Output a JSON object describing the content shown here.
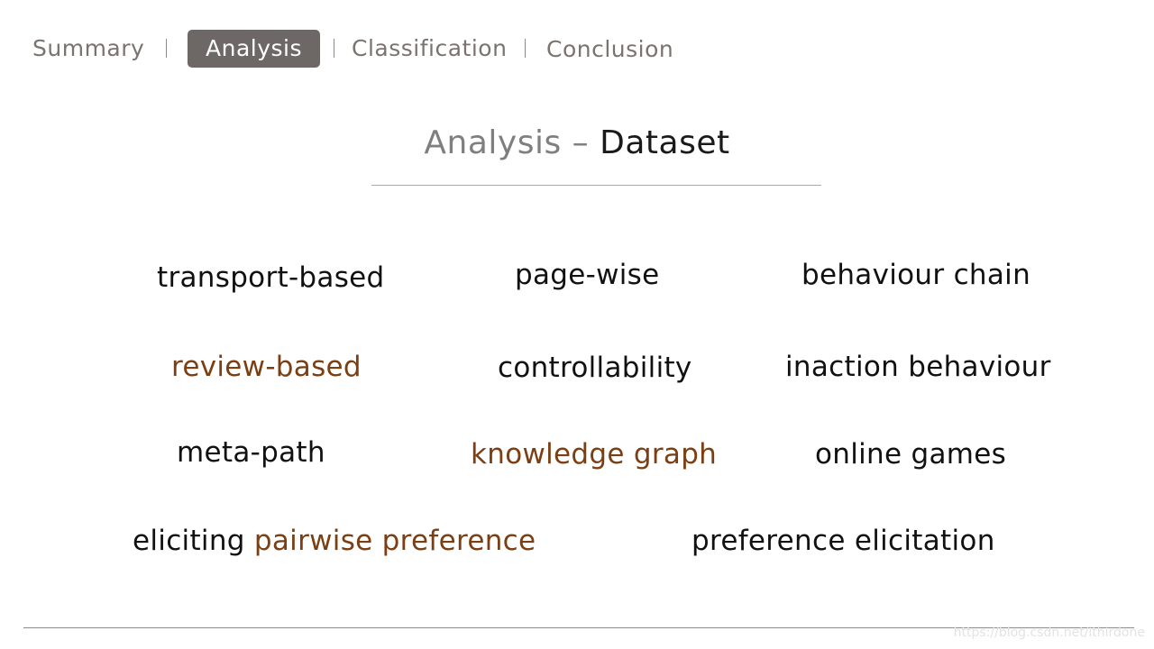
{
  "nav": {
    "items": [
      {
        "label": "Summary"
      },
      {
        "label": "Analysis"
      },
      {
        "label": "Classification"
      },
      {
        "label": "Conclusion"
      }
    ],
    "active_index": 1
  },
  "slide": {
    "title_main": "Analysis",
    "title_dash": "–",
    "title_sub": "Dataset"
  },
  "terms": {
    "transport_based": "transport-based",
    "page_wise": "page-wise",
    "behaviour_chain": "behaviour chain",
    "review_based": "review-based",
    "controllability": "controllability",
    "inaction_behaviour": "inaction behaviour",
    "meta_path": "meta-path",
    "knowledge_graph": "knowledge graph",
    "online_games": "online games",
    "eliciting": "eliciting",
    "pairwise_preference": "pairwise preference",
    "preference_elicitation": "preference elicitation"
  },
  "colors": {
    "accent": "#7b3f13",
    "text": "#111111",
    "nav_active_bg": "#6d6865",
    "nav_text": "#7a7370"
  },
  "watermark": "https://blog.csdn.net/ithirdone"
}
